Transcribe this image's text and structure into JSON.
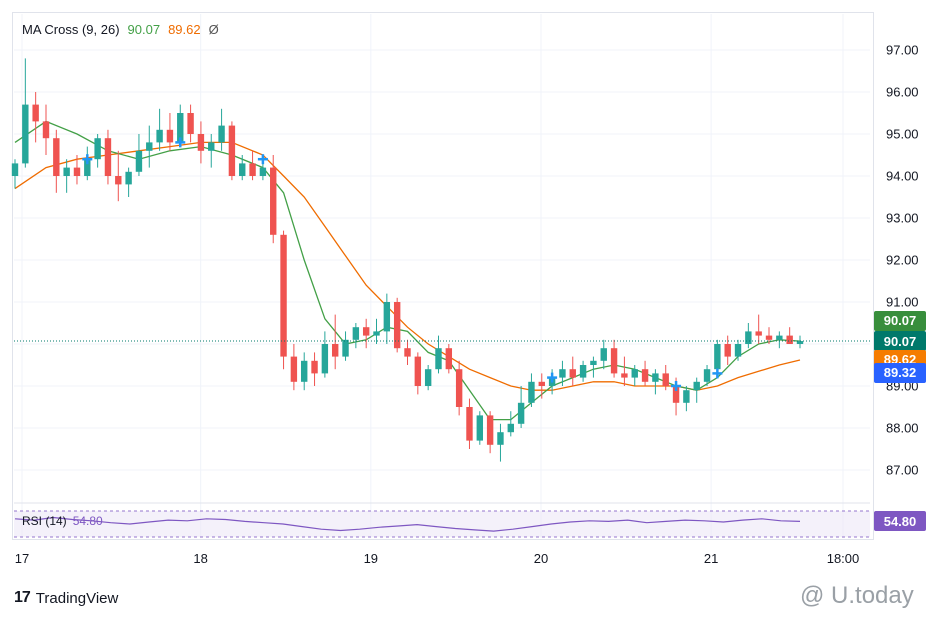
{
  "legend": {
    "label": "MA Cross (9, 26)",
    "fast_value": "90.07",
    "slow_value": "89.62",
    "eye": "Ø"
  },
  "rsi_legend": {
    "label": "RSI (14)",
    "value": "54.80"
  },
  "badges": [
    {
      "text": "90.07",
      "color": "#388e3c",
      "price": 90.55
    },
    {
      "text": "90.07",
      "color": "#00796b",
      "price": 90.07
    },
    {
      "text": "89.62",
      "color": "#f57c00",
      "price": 89.62
    },
    {
      "text": "89.32",
      "color": "#2962ff",
      "price": 89.32
    },
    {
      "text": "54.80",
      "color": "#7e57c2",
      "price": null
    }
  ],
  "brand": {
    "name": "TradingView",
    "logo": "17"
  },
  "watermark": {
    "text": "@ U.today"
  },
  "colors": {
    "up": "#26a69a",
    "down": "#ef5350",
    "fast": "#43a047",
    "slow": "#ef6c00",
    "rsi": "#7e57c2",
    "cross": "#2196f3"
  },
  "chart_data": {
    "type": "candlestick",
    "title": "MA Cross (9, 26)",
    "y_ticks": [
      "97.00",
      "96.00",
      "95.00",
      "94.00",
      "93.00",
      "92.00",
      "91.00",
      "90.00",
      "89.00",
      "88.00",
      "87.00"
    ],
    "ylim": [
      86.3,
      97.6
    ],
    "x_ticks": [
      {
        "label": "17",
        "t": 0
      },
      {
        "label": "18",
        "t": 21
      },
      {
        "label": "19",
        "t": 41
      },
      {
        "label": "20",
        "t": 61
      },
      {
        "label": "21",
        "t": 81
      },
      {
        "label": "18:00",
        "t": 96.5
      }
    ],
    "last_price": 90.07,
    "candles": [
      [
        94.0,
        94.4,
        93.7,
        94.3
      ],
      [
        94.3,
        96.8,
        94.2,
        95.7
      ],
      [
        95.7,
        96.0,
        94.8,
        95.3
      ],
      [
        95.3,
        95.7,
        94.5,
        94.9
      ],
      [
        94.9,
        95.1,
        93.6,
        94.0
      ],
      [
        94.0,
        94.4,
        93.6,
        94.2
      ],
      [
        94.2,
        94.5,
        93.8,
        94.0
      ],
      [
        94.0,
        94.7,
        93.9,
        94.4
      ],
      [
        94.4,
        95.0,
        94.2,
        94.9
      ],
      [
        94.9,
        95.1,
        93.8,
        94.0
      ],
      [
        94.0,
        94.6,
        93.4,
        93.8
      ],
      [
        93.8,
        94.2,
        93.5,
        94.1
      ],
      [
        94.1,
        95.0,
        94.0,
        94.6
      ],
      [
        94.6,
        95.2,
        94.2,
        94.8
      ],
      [
        94.8,
        95.6,
        94.6,
        95.1
      ],
      [
        95.1,
        95.5,
        94.6,
        94.8
      ],
      [
        94.8,
        95.7,
        94.7,
        95.5
      ],
      [
        95.5,
        95.7,
        94.8,
        95.0
      ],
      [
        95.0,
        95.3,
        94.3,
        94.6
      ],
      [
        94.6,
        95.0,
        94.2,
        94.8
      ],
      [
        94.8,
        95.6,
        94.6,
        95.2
      ],
      [
        95.2,
        95.3,
        93.9,
        94.0
      ],
      [
        94.0,
        94.5,
        93.9,
        94.3
      ],
      [
        94.3,
        94.6,
        93.9,
        94.0
      ],
      [
        94.0,
        94.4,
        93.9,
        94.2
      ],
      [
        94.2,
        94.5,
        92.4,
        92.6
      ],
      [
        92.6,
        92.7,
        89.4,
        89.7
      ],
      [
        89.7,
        90.0,
        88.9,
        89.1
      ],
      [
        89.1,
        89.8,
        88.9,
        89.6
      ],
      [
        89.6,
        89.8,
        89.0,
        89.3
      ],
      [
        89.3,
        90.3,
        89.2,
        90.0
      ],
      [
        90.0,
        90.7,
        89.4,
        89.7
      ],
      [
        89.7,
        90.3,
        89.6,
        90.1
      ],
      [
        90.1,
        90.5,
        89.9,
        90.4
      ],
      [
        90.4,
        90.6,
        89.9,
        90.2
      ],
      [
        90.2,
        90.6,
        90.0,
        90.3
      ],
      [
        90.3,
        91.2,
        90.0,
        91.0
      ],
      [
        91.0,
        91.1,
        89.8,
        89.9
      ],
      [
        89.9,
        90.1,
        89.5,
        89.7
      ],
      [
        89.7,
        89.8,
        88.8,
        89.0
      ],
      [
        89.0,
        89.5,
        88.9,
        89.4
      ],
      [
        89.4,
        90.2,
        89.3,
        89.9
      ],
      [
        89.9,
        90.0,
        89.3,
        89.4
      ],
      [
        89.4,
        89.6,
        88.3,
        88.5
      ],
      [
        88.5,
        88.7,
        87.5,
        87.7
      ],
      [
        87.7,
        88.4,
        87.6,
        88.3
      ],
      [
        88.3,
        88.4,
        87.4,
        87.6
      ],
      [
        87.6,
        88.1,
        87.2,
        87.9
      ],
      [
        87.9,
        88.4,
        87.8,
        88.1
      ],
      [
        88.1,
        89.0,
        88.0,
        88.6
      ],
      [
        88.6,
        89.3,
        88.5,
        89.1
      ],
      [
        89.1,
        89.3,
        88.7,
        89.0
      ],
      [
        89.0,
        89.4,
        88.8,
        89.2
      ],
      [
        89.2,
        89.6,
        89.0,
        89.4
      ],
      [
        89.4,
        89.7,
        89.0,
        89.2
      ],
      [
        89.2,
        89.6,
        89.1,
        89.5
      ],
      [
        89.5,
        89.7,
        89.2,
        89.6
      ],
      [
        89.6,
        90.1,
        89.4,
        89.9
      ],
      [
        89.9,
        90.1,
        89.2,
        89.3
      ],
      [
        89.3,
        89.7,
        89.0,
        89.2
      ],
      [
        89.2,
        89.5,
        89.0,
        89.4
      ],
      [
        89.4,
        89.6,
        89.0,
        89.1
      ],
      [
        89.1,
        89.4,
        88.8,
        89.3
      ],
      [
        89.3,
        89.5,
        88.9,
        89.0
      ],
      [
        89.0,
        89.2,
        88.3,
        88.6
      ],
      [
        88.6,
        89.0,
        88.4,
        88.9
      ],
      [
        88.9,
        89.2,
        88.6,
        89.1
      ],
      [
        89.1,
        89.5,
        89.0,
        89.4
      ],
      [
        89.4,
        90.1,
        89.3,
        90.0
      ],
      [
        90.0,
        90.2,
        89.5,
        89.7
      ],
      [
        89.7,
        90.1,
        89.6,
        90.0
      ],
      [
        90.0,
        90.5,
        89.9,
        90.3
      ],
      [
        90.3,
        90.7,
        90.0,
        90.2
      ],
      [
        90.2,
        90.4,
        90.0,
        90.1
      ],
      [
        90.1,
        90.3,
        89.9,
        90.2
      ],
      [
        90.2,
        90.4,
        90.0,
        90.0
      ],
      [
        90.0,
        90.2,
        89.9,
        90.07
      ]
    ],
    "ma_fast": [
      [
        0,
        94.8
      ],
      [
        3,
        95.3
      ],
      [
        6,
        95.0
      ],
      [
        9,
        94.6
      ],
      [
        12,
        94.4
      ],
      [
        15,
        94.6
      ],
      [
        18,
        94.7
      ],
      [
        21,
        94.5
      ],
      [
        24,
        94.2
      ],
      [
        26,
        93.6
      ],
      [
        28,
        92.0
      ],
      [
        30,
        90.6
      ],
      [
        32,
        90.0
      ],
      [
        34,
        90.1
      ],
      [
        36,
        90.4
      ],
      [
        38,
        90.3
      ],
      [
        40,
        89.8
      ],
      [
        42,
        89.6
      ],
      [
        44,
        88.9
      ],
      [
        46,
        88.2
      ],
      [
        48,
        88.2
      ],
      [
        50,
        88.6
      ],
      [
        52,
        89.0
      ],
      [
        54,
        89.2
      ],
      [
        56,
        89.4
      ],
      [
        58,
        89.5
      ],
      [
        60,
        89.4
      ],
      [
        62,
        89.2
      ],
      [
        64,
        89.0
      ],
      [
        66,
        88.9
      ],
      [
        68,
        89.2
      ],
      [
        70,
        89.7
      ],
      [
        72,
        90.0
      ],
      [
        74,
        90.1
      ],
      [
        76,
        90.07
      ]
    ],
    "ma_slow": [
      [
        0,
        93.7
      ],
      [
        3,
        94.2
      ],
      [
        6,
        94.4
      ],
      [
        9,
        94.5
      ],
      [
        12,
        94.6
      ],
      [
        15,
        94.7
      ],
      [
        18,
        94.8
      ],
      [
        21,
        94.8
      ],
      [
        24,
        94.5
      ],
      [
        26,
        94.0
      ],
      [
        28,
        93.5
      ],
      [
        30,
        92.8
      ],
      [
        32,
        92.1
      ],
      [
        34,
        91.4
      ],
      [
        36,
        90.9
      ],
      [
        38,
        90.4
      ],
      [
        40,
        90.0
      ],
      [
        42,
        89.7
      ],
      [
        44,
        89.4
      ],
      [
        46,
        89.2
      ],
      [
        48,
        89.0
      ],
      [
        50,
        88.9
      ],
      [
        52,
        88.9
      ],
      [
        54,
        89.0
      ],
      [
        56,
        89.1
      ],
      [
        58,
        89.1
      ],
      [
        60,
        89.0
      ],
      [
        62,
        89.0
      ],
      [
        64,
        89.0
      ],
      [
        66,
        88.9
      ],
      [
        68,
        89.0
      ],
      [
        70,
        89.2
      ],
      [
        72,
        89.35
      ],
      [
        74,
        89.5
      ],
      [
        76,
        89.62
      ]
    ],
    "crosses": [
      [
        7,
        94.4
      ],
      [
        16,
        94.8
      ],
      [
        24,
        94.4
      ],
      [
        52,
        89.2
      ],
      [
        64,
        89.0
      ],
      [
        68,
        89.3
      ]
    ],
    "rsi": {
      "label": "RSI (14)",
      "value": 54.8,
      "series": [
        58,
        56,
        60,
        57,
        55,
        52,
        50,
        53,
        56,
        55,
        58,
        57,
        54,
        52,
        50,
        46,
        42,
        40,
        42,
        45,
        47,
        49,
        46,
        43,
        41,
        39,
        42,
        46,
        50,
        53,
        55,
        54,
        56,
        52,
        54,
        56,
        55,
        53,
        56,
        58,
        55,
        54
      ]
    }
  }
}
